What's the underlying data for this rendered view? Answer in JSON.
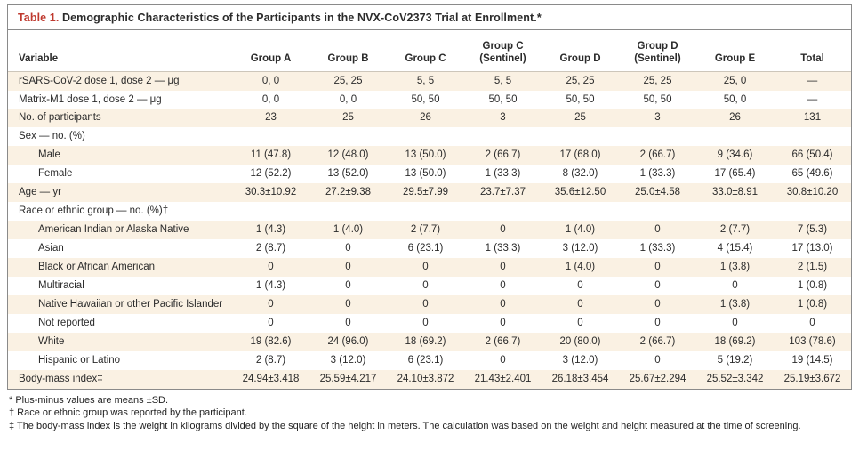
{
  "colors": {
    "accent_red": "#bf3a2f",
    "row_stripe": "#faf1e3",
    "border_gray": "#8a8a8a"
  },
  "table": {
    "title_label": "Table 1.",
    "title_text": " Demographic Characteristics of the Participants in the NVX-CoV2373 Trial at Enrollment.*",
    "columns": [
      "Variable",
      "Group A",
      "Group B",
      "Group C",
      "Group C\n(Sentinel)",
      "Group D",
      "Group D\n(Sentinel)",
      "Group E",
      "Total"
    ],
    "rows": [
      {
        "label": "rSARS-CoV-2 dose 1, dose 2 — μg",
        "indent": 0,
        "values": [
          "0, 0",
          "25, 25",
          "5, 5",
          "5, 5",
          "25, 25",
          "25, 25",
          "25, 0",
          "—"
        ]
      },
      {
        "label": "Matrix-M1 dose 1, dose 2 — μg",
        "indent": 0,
        "values": [
          "0, 0",
          "0, 0",
          "50, 50",
          "50, 50",
          "50, 50",
          "50, 50",
          "50, 0",
          "—"
        ]
      },
      {
        "label": "No. of participants",
        "indent": 0,
        "values": [
          "23",
          "25",
          "26",
          "3",
          "25",
          "3",
          "26",
          "131"
        ]
      },
      {
        "label": "Sex — no. (%)",
        "indent": 0,
        "values": [
          "",
          "",
          "",
          "",
          "",
          "",
          "",
          ""
        ]
      },
      {
        "label": "Male",
        "indent": 1,
        "values": [
          "11 (47.8)",
          "12 (48.0)",
          "13 (50.0)",
          "2 (66.7)",
          "17 (68.0)",
          "2 (66.7)",
          "9 (34.6)",
          "66 (50.4)"
        ]
      },
      {
        "label": "Female",
        "indent": 1,
        "values": [
          "12 (52.2)",
          "13 (52.0)",
          "13 (50.0)",
          "1 (33.3)",
          "8 (32.0)",
          "1 (33.3)",
          "17 (65.4)",
          "65 (49.6)"
        ]
      },
      {
        "label": "Age — yr",
        "indent": 0,
        "values": [
          "30.3±10.92",
          "27.2±9.38",
          "29.5±7.99",
          "23.7±7.37",
          "35.6±12.50",
          "25.0±4.58",
          "33.0±8.91",
          "30.8±10.20"
        ]
      },
      {
        "label": "Race or ethnic group — no. (%)†",
        "indent": 0,
        "values": [
          "",
          "",
          "",
          "",
          "",
          "",
          "",
          ""
        ]
      },
      {
        "label": "American Indian or Alaska Native",
        "indent": 1,
        "values": [
          "1 (4.3)",
          "1 (4.0)",
          "2 (7.7)",
          "0",
          "1 (4.0)",
          "0",
          "2 (7.7)",
          "7 (5.3)"
        ]
      },
      {
        "label": "Asian",
        "indent": 1,
        "values": [
          "2 (8.7)",
          "0",
          "6 (23.1)",
          "1 (33.3)",
          "3 (12.0)",
          "1 (33.3)",
          "4 (15.4)",
          "17 (13.0)"
        ]
      },
      {
        "label": "Black or African American",
        "indent": 1,
        "values": [
          "0",
          "0",
          "0",
          "0",
          "1 (4.0)",
          "0",
          "1 (3.8)",
          "2 (1.5)"
        ]
      },
      {
        "label": "Multiracial",
        "indent": 1,
        "values": [
          "1 (4.3)",
          "0",
          "0",
          "0",
          "0",
          "0",
          "0",
          "1 (0.8)"
        ]
      },
      {
        "label": "Native Hawaiian or other Pacific Islander",
        "indent": 1,
        "values": [
          "0",
          "0",
          "0",
          "0",
          "0",
          "0",
          "1 (3.8)",
          "1 (0.8)"
        ]
      },
      {
        "label": "Not reported",
        "indent": 1,
        "values": [
          "0",
          "0",
          "0",
          "0",
          "0",
          "0",
          "0",
          "0"
        ]
      },
      {
        "label": "White",
        "indent": 1,
        "values": [
          "19 (82.6)",
          "24 (96.0)",
          "18 (69.2)",
          "2 (66.7)",
          "20 (80.0)",
          "2 (66.7)",
          "18 (69.2)",
          "103 (78.6)"
        ]
      },
      {
        "label": "Hispanic or Latino",
        "indent": 1,
        "values": [
          "2 (8.7)",
          "3 (12.0)",
          "6 (23.1)",
          "0",
          "3 (12.0)",
          "0",
          "5 (19.2)",
          "19 (14.5)"
        ]
      },
      {
        "label": "Body-mass index‡",
        "indent": 0,
        "values": [
          "24.94±3.418",
          "25.59±4.217",
          "24.10±3.872",
          "21.43±2.401",
          "26.18±3.454",
          "25.67±2.294",
          "25.52±3.342",
          "25.19±3.672"
        ]
      }
    ]
  },
  "footnotes": [
    "* Plus-minus values are means ±SD.",
    "† Race or ethnic group was reported by the participant.",
    "‡ The body-mass index is the weight in kilograms divided by the square of the height in meters. The calculation was based on the weight and height measured at the time of screening."
  ]
}
